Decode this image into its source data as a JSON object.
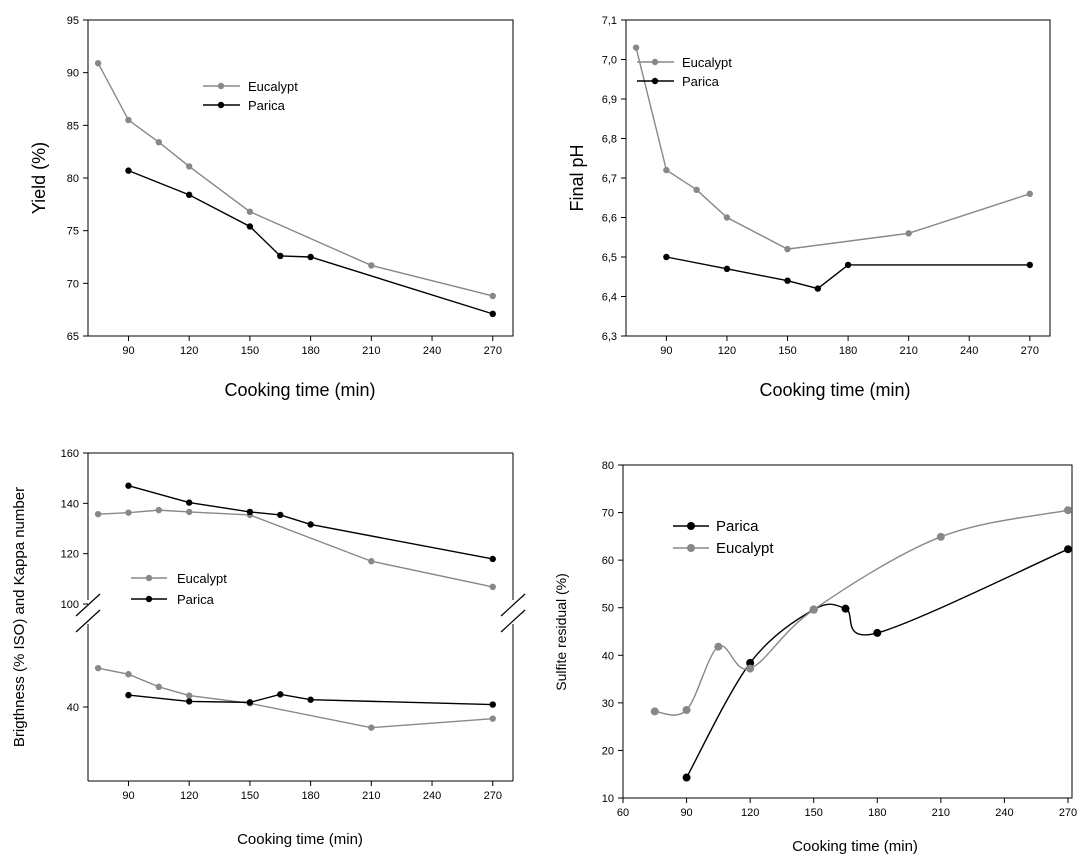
{
  "chart_data": [
    {
      "id": "yield",
      "type": "line",
      "xlabel": "Cooking time (min)",
      "ylabel": "Yield (%)",
      "xlim": [
        70,
        280
      ],
      "ylim": [
        65,
        95
      ],
      "xticks": [
        90,
        120,
        150,
        180,
        210,
        240,
        270
      ],
      "yticks": [
        65,
        70,
        75,
        80,
        85,
        90,
        95
      ],
      "legend": "upper-middle",
      "series": [
        {
          "name": "Eucalypt",
          "color": "#888888",
          "x": [
            75,
            90,
            105,
            120,
            150,
            210,
            270
          ],
          "y": [
            90.9,
            85.5,
            83.4,
            81.1,
            76.8,
            71.7,
            68.8
          ]
        },
        {
          "name": "Parica",
          "color": "#000000",
          "x": [
            90,
            120,
            150,
            165,
            180,
            270
          ],
          "y": [
            80.7,
            78.4,
            75.4,
            72.6,
            72.5,
            67.1
          ]
        }
      ]
    },
    {
      "id": "ph",
      "type": "line",
      "xlabel": "Cooking time (min)",
      "ylabel": "Final pH",
      "xlim": [
        70,
        280
      ],
      "ylim": [
        6.3,
        7.1
      ],
      "xticks": [
        90,
        120,
        150,
        180,
        210,
        240,
        270
      ],
      "yticks": [
        "6,3",
        "6,4",
        "6,5",
        "6,6",
        "6,7",
        "6,8",
        "6,9",
        "7,0",
        "7,1"
      ],
      "legend": "top-left",
      "series": [
        {
          "name": "Eucalypt",
          "color": "#888888",
          "x": [
            75,
            90,
            105,
            120,
            150,
            210,
            270
          ],
          "y": [
            7.03,
            6.72,
            6.67,
            6.6,
            6.52,
            6.56,
            6.66
          ]
        },
        {
          "name": "Parica",
          "color": "#000000",
          "x": [
            90,
            120,
            150,
            165,
            180,
            270
          ],
          "y": [
            6.5,
            6.47,
            6.44,
            6.42,
            6.48,
            6.48
          ]
        }
      ]
    },
    {
      "id": "brightness_kappa",
      "type": "line",
      "xlabel": "Cooking time (min)",
      "ylabel": "Brigthness (% ISO) and Kappa number",
      "xlim": [
        70,
        280
      ],
      "xticks": [
        90,
        120,
        150,
        180,
        210,
        240,
        270
      ],
      "yticks": [
        40,
        100,
        120,
        140,
        160
      ],
      "axis_break": "between 100 and the lower panel",
      "legend": "middle-left",
      "series": [
        {
          "name": "Eucalypt",
          "color": "#888888",
          "x": [
            75,
            90,
            105,
            120,
            150,
            210,
            270
          ],
          "y": [
            135.7,
            136.3,
            137.3,
            136.6,
            135.4,
            117.0,
            106.8
          ]
        },
        {
          "name": "Parica",
          "color": "#000000",
          "x": [
            90,
            120,
            150,
            165,
            180,
            270
          ],
          "y": [
            147.0,
            140.3,
            136.6,
            135.4,
            131.6,
            117.9
          ]
        },
        {
          "name": "Eucalypt",
          "color": "#888888",
          "legend": false,
          "x": [
            75,
            90,
            105,
            120,
            150,
            210,
            270
          ],
          "y": [
            56.0,
            53.5,
            48.3,
            44.7,
            41.5,
            31.5,
            35.2
          ]
        },
        {
          "name": "Parica",
          "color": "#000000",
          "legend": false,
          "x": [
            90,
            120,
            150,
            165,
            180,
            270
          ],
          "y": [
            44.9,
            42.3,
            41.9,
            45.2,
            43.0,
            41.0
          ]
        }
      ]
    },
    {
      "id": "sulfite",
      "type": "line",
      "xlabel": "Cooking time (min)",
      "ylabel": "Sulfite residual (%)",
      "xlim": [
        60,
        270
      ],
      "ylim": [
        10,
        80
      ],
      "xticks": [
        60,
        90,
        120,
        150,
        180,
        210,
        240,
        270
      ],
      "yticks": [
        10,
        20,
        30,
        40,
        50,
        60,
        70,
        80
      ],
      "legend": "upper-left",
      "series": [
        {
          "name": "Parica",
          "color": "#000000",
          "x": [
            90,
            120,
            150,
            165,
            180,
            270
          ],
          "y": [
            14.3,
            38.4,
            49.6,
            49.8,
            44.7,
            62.3
          ]
        },
        {
          "name": "Eucalypt",
          "color": "#888888",
          "x": [
            75,
            90,
            105,
            120,
            150,
            210,
            270
          ],
          "y": [
            28.2,
            28.5,
            41.8,
            37.2,
            49.6,
            64.9,
            70.5
          ]
        }
      ]
    }
  ]
}
